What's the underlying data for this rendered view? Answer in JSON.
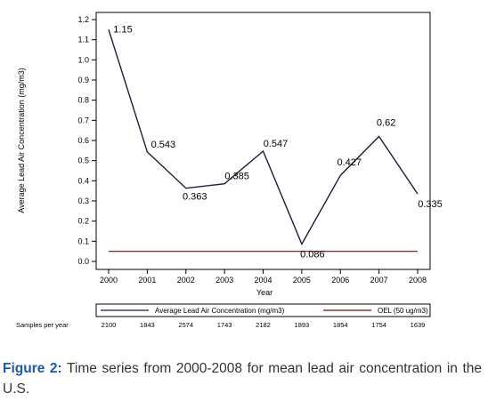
{
  "chart_data": {
    "type": "line",
    "categories": [
      "2000",
      "2001",
      "2002",
      "2003",
      "2004",
      "2005",
      "2006",
      "2007",
      "2008"
    ],
    "series": [
      {
        "name": "Average Lead Air Concentration (mg/m3)",
        "values": [
          1.15,
          0.543,
          0.363,
          0.385,
          0.547,
          0.086,
          0.427,
          0.62,
          0.335
        ],
        "color": "#1c1c3c"
      },
      {
        "name": "OEL (50 ug/m3)",
        "values": [
          0.05,
          0.05,
          0.05,
          0.05,
          0.05,
          0.05,
          0.05,
          0.05,
          0.05
        ],
        "color": "#6b1010"
      }
    ],
    "data_labels": [
      "1.15",
      "0.543",
      "0.363",
      "0.385",
      "0.547",
      "0.086",
      "0.427",
      "0.62",
      "0.335"
    ],
    "xlabel": "Year",
    "ylabel": "Average Lead Air Concentration (mg/m3)",
    "ylim": [
      0,
      1.2
    ],
    "yticks": [
      "0.0",
      "0.1",
      "0.2",
      "0.3",
      "0.4",
      "0.5",
      "0.6",
      "0.7",
      "0.8",
      "0.9",
      "1.0",
      "1.1",
      "1.2"
    ],
    "grid": false,
    "legend_position": "bottom"
  },
  "samples": {
    "label": "Samples per year",
    "values": [
      "2100",
      "1843",
      "2574",
      "1743",
      "2182",
      "1893",
      "1854",
      "1754",
      "1639"
    ]
  },
  "caption": {
    "label": "Figure 2:",
    "text": " Time series from 2000-2008 for mean lead air concentration in the U.S."
  },
  "colors": {
    "caption_label": "#1a5aa8",
    "caption_text": "#333333"
  }
}
